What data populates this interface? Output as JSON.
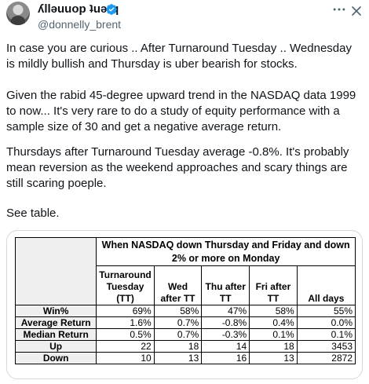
{
  "author": {
    "display_name": "ʎllǝuuop ʇuǝɹq",
    "handle": "@donnelly_brent",
    "avatar_icon": "avatar",
    "verified_icon": "verified-badge-icon",
    "verified_color": "#1d9bf0"
  },
  "header_actions": {
    "more_icon": "more-horizontal-icon",
    "close_icon": "close-icon"
  },
  "tweet": {
    "p1": "In case you are curious .. After Turnaround Tuesday .. Wednesday is mildly bullish and Thursday is uber bearish for stocks.",
    "p2": "Given the rabid 45-degree upward trend in the NASDAQ data 1999 to now... It's very rare to do a study of equity performance with a sample size of 30 and get a negative average return.",
    "p3": "Thursdays after Turnaround Tuesday average -0.8%. It's probably mean reversion as the weekend approaches and scary things are still scaring poeple.",
    "p4": "See table."
  },
  "table": {
    "group_header": "When NASDAQ down Thursday and Friday and down 2% or more on Monday",
    "columns": [
      "Turnaround Tuesday (TT)",
      "Wed after TT",
      "Thu after TT",
      "Fri after TT",
      "All days"
    ],
    "rows": [
      {
        "label": "Win%",
        "values": [
          "69%",
          "58%",
          "47%",
          "58%",
          "55%"
        ]
      },
      {
        "label": "Average Return",
        "values": [
          "1.6%",
          "0.7%",
          "-0.8%",
          "0.4%",
          "0.0%"
        ]
      },
      {
        "label": "Median Return",
        "values": [
          "0.5%",
          "0.7%",
          "-0.3%",
          "0.1%",
          "0.1%"
        ]
      },
      {
        "label": "Up",
        "values": [
          "22",
          "18",
          "14",
          "18",
          "3453"
        ]
      },
      {
        "label": "Down",
        "values": [
          "10",
          "13",
          "16",
          "13",
          "2872"
        ]
      }
    ]
  }
}
